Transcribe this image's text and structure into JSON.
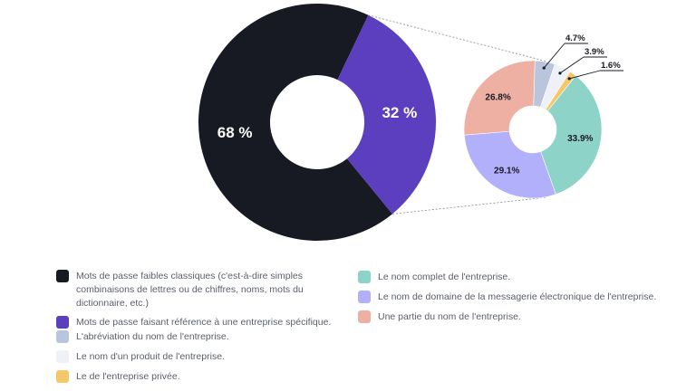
{
  "chart_data": [
    {
      "type": "pie",
      "variant": "donut",
      "title": "",
      "labels": [
        "Mots de passe faibles classiques (c'est-à-dire simples combinaisons de lettres ou de chiffres, noms, mots du dictionnaire, etc.)",
        "Mots de passe faisant référence à une entreprise spécifique."
      ],
      "values": [
        68,
        32
      ],
      "data_labels": [
        "68 %",
        "32 %"
      ],
      "colors": [
        "#181a23",
        "#5b3fbf"
      ]
    },
    {
      "type": "pie",
      "variant": "donut",
      "title": "",
      "breakdown_of": "Mots de passe faisant référence à une entreprise spécifique.",
      "labels": [
        "Le nom complet de l'entreprise.",
        "Le nom de domaine de la messagerie électronique de l'entreprise.",
        "Une partie du nom de l'entreprise.",
        "L'abréviation du nom de l'entreprise.",
        "Le nom d'un produit de l'entreprise.",
        "Le de l'entreprise privée."
      ],
      "values": [
        33.9,
        29.1,
        26.8,
        4.7,
        3.9,
        1.6
      ],
      "data_labels": [
        "33.9%",
        "29.1%",
        "26.8%",
        "4.7%",
        "3.9%",
        "1.6%"
      ],
      "colors": [
        "#8dd3c7",
        "#b3b0fb",
        "#eeb0a3",
        "#b8c5dd",
        "#eef1f6",
        "#f5c766"
      ]
    }
  ],
  "legend": {
    "left": [
      {
        "label": "Mots de passe faibles classiques (c'est-à-dire simples combinaisons de lettres ou de chiffres, noms, mots du dictionnaire, etc.)",
        "color": "#181a23"
      },
      {
        "label": "Mots de passe faisant référence à une entreprise spécifique.",
        "color": "#5b3fbf"
      },
      {
        "label": "L'abréviation du nom de l'entreprise.",
        "color": "#b8c5dd"
      },
      {
        "label": "Le nom d'un produit de l'entreprise.",
        "color": "#eef1f6"
      },
      {
        "label": "Le de l'entreprise privée.",
        "color": "#f5c766"
      }
    ],
    "right": [
      {
        "label": "Le nom complet de l'entreprise.",
        "color": "#8dd3c7"
      },
      {
        "label": "Le nom de domaine de la messagerie électronique de l'entreprise.",
        "color": "#b3b0fb"
      },
      {
        "label": "Une partie du nom de l'entreprise.",
        "color": "#eeb0a3"
      }
    ]
  }
}
